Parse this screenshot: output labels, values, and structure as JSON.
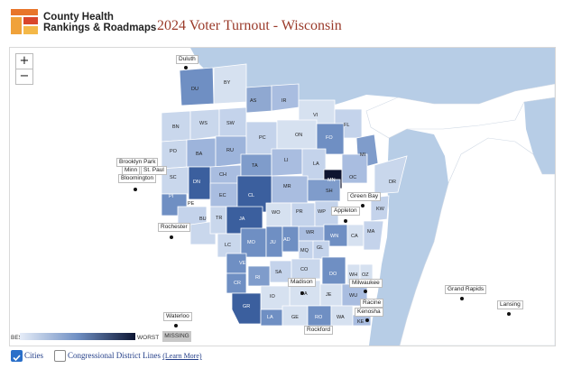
{
  "header": {
    "logo_line1": "County Health",
    "logo_line2": "Rankings & Roadmaps",
    "title": "2024 Voter Turnout - Wisconsin"
  },
  "zoom": {
    "in": "+",
    "out": "−"
  },
  "legend": {
    "best": "BEST",
    "worst": "WORST",
    "missing": "MISSING",
    "gradient": [
      "#e6edf8",
      "#0d1633"
    ]
  },
  "controls": {
    "cities_label": "Cities",
    "cities_checked": true,
    "districts_label": "Congressional District Lines",
    "districts_checked": false,
    "learn_more": "(Learn More)"
  },
  "colors": {
    "water": "#b7cde6",
    "land_outside": "#ffffff",
    "accent_title": "#9a3a2a"
  },
  "counties": [
    {
      "code": "DU",
      "shade": 3
    },
    {
      "code": "BY",
      "shade": 1
    },
    {
      "code": "AS",
      "shade": 2
    },
    {
      "code": "IR",
      "shade": 2
    },
    {
      "code": "BN",
      "shade": 1
    },
    {
      "code": "WS",
      "shade": 1
    },
    {
      "code": "SW",
      "shade": 1
    },
    {
      "code": "VI",
      "shade": 1
    },
    {
      "code": "FL",
      "shade": 1
    },
    {
      "code": "PO",
      "shade": 1
    },
    {
      "code": "BA",
      "shade": 2
    },
    {
      "code": "RU",
      "shade": 2
    },
    {
      "code": "PC",
      "shade": 1
    },
    {
      "code": "ON",
      "shade": 1
    },
    {
      "code": "FO",
      "shade": 3
    },
    {
      "code": "MI",
      "shade": 3
    },
    {
      "code": "SC",
      "shade": 1
    },
    {
      "code": "CH",
      "shade": 2
    },
    {
      "code": "TA",
      "shade": 3
    },
    {
      "code": "LI",
      "shade": 2
    },
    {
      "code": "LA",
      "shade": 1
    },
    {
      "code": "MN",
      "shade": 6
    },
    {
      "code": "OC",
      "shade": 2
    },
    {
      "code": "DN",
      "shade": 4
    },
    {
      "code": "EC",
      "shade": 2
    },
    {
      "code": "MR",
      "shade": 2
    },
    {
      "code": "SH",
      "shade": 3
    },
    {
      "code": "DR",
      "shade": 1
    },
    {
      "code": "PI",
      "shade": 3
    },
    {
      "code": "PE",
      "shade": 1
    },
    {
      "code": "CL",
      "shade": 4
    },
    {
      "code": "BU",
      "shade": 1
    },
    {
      "code": "TR",
      "shade": 1
    },
    {
      "code": "JA",
      "shade": 4
    },
    {
      "code": "WO",
      "shade": 1
    },
    {
      "code": "PR",
      "shade": 1
    },
    {
      "code": "WP",
      "shade": 1
    },
    {
      "code": "KW",
      "shade": 1
    },
    {
      "code": "LC",
      "shade": 1
    },
    {
      "code": "MO",
      "shade": 3
    },
    {
      "code": "JU",
      "shade": 3
    },
    {
      "code": "AD",
      "shade": 3
    },
    {
      "code": "WR",
      "shade": 2
    },
    {
      "code": "WN",
      "shade": 3
    },
    {
      "code": "CA",
      "shade": 1
    },
    {
      "code": "MA",
      "shade": 1
    },
    {
      "code": "MQ",
      "shade": 1
    },
    {
      "code": "GL",
      "shade": 1
    },
    {
      "code": "VE",
      "shade": 3
    },
    {
      "code": "SA",
      "shade": 1
    },
    {
      "code": "CO",
      "shade": 1
    },
    {
      "code": "DO",
      "shade": 3
    },
    {
      "code": "WH",
      "shade": 1
    },
    {
      "code": "OZ",
      "shade": 1
    },
    {
      "code": "RI",
      "shade": 3
    },
    {
      "code": "CR",
      "shade": 3
    },
    {
      "code": "DA",
      "shade": 1
    },
    {
      "code": "JE",
      "shade": 1
    },
    {
      "code": "WU",
      "shade": 2
    },
    {
      "code": "IO",
      "shade": 1
    },
    {
      "code": "GR",
      "shade": 4
    },
    {
      "code": "LA",
      "shade": 3
    },
    {
      "code": "GE",
      "shade": 1
    },
    {
      "code": "RO",
      "shade": 3
    },
    {
      "code": "WA",
      "shade": 1
    },
    {
      "code": "KE",
      "shade": 2
    }
  ],
  "cities": [
    {
      "name": "Duluth"
    },
    {
      "name": "Brooklyn Park"
    },
    {
      "name": "Minneapolis"
    },
    {
      "name": "St. Paul"
    },
    {
      "name": "Bloomington"
    },
    {
      "name": "Rochester"
    },
    {
      "name": "Green Bay"
    },
    {
      "name": "Appleton"
    },
    {
      "name": "Madison"
    },
    {
      "name": "Milwaukee"
    },
    {
      "name": "Racine"
    },
    {
      "name": "Kenosha"
    },
    {
      "name": "Waterloo"
    },
    {
      "name": "Grand Rapids"
    },
    {
      "name": "Lansing"
    },
    {
      "name": "Rockford"
    }
  ]
}
